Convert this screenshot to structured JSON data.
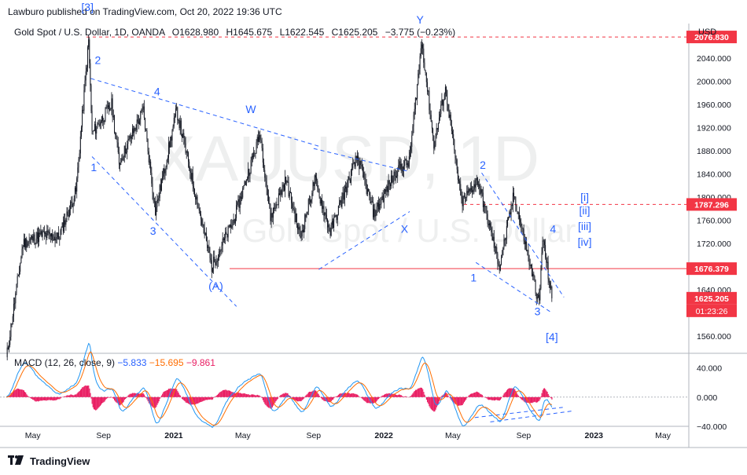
{
  "header": {
    "published_text": "Lawburo published on TradingView.com, Oct 20, 2022 19:36 UTC"
  },
  "legend": {
    "symbol": "Gold Spot / U.S. Dollar, 1D, OANDA",
    "open": "O1628.980",
    "high": "H1645.675",
    "low": "L1622.545",
    "close": "C1625.205",
    "change": "−3.775 (−0.23%)"
  },
  "watermark": {
    "ticker": "XAUUSD, 1D",
    "name": "Gold Spot / U.S. Dollar"
  },
  "price_axis": {
    "currency": "USD",
    "ticks": [
      "2040.000",
      "2000.000",
      "1960.000",
      "1920.000",
      "1880.000",
      "1840.000",
      "1800.000",
      "1760.000",
      "1720.000",
      "1680.000",
      "1640.000",
      "1600.000",
      "1560.000"
    ],
    "tick_values": [
      2040,
      2000,
      1960,
      1920,
      1880,
      1840,
      1800,
      1760,
      1720,
      1680,
      1640,
      1600,
      1560
    ],
    "labels": [
      {
        "text": "2076.830",
        "value": 2076.83,
        "color": "#f23645"
      },
      {
        "text": "1787.296",
        "value": 1787.296,
        "color": "#f23645"
      },
      {
        "text": "1676.379",
        "value": 1676.379,
        "color": "#f23645"
      },
      {
        "text": "1625.205",
        "value": 1625.205,
        "color": "#f23645"
      }
    ],
    "countdown": "01:23:26"
  },
  "macd_axis": {
    "ticks": [
      "40.000",
      "0.000",
      "−40.000"
    ],
    "tick_values": [
      40,
      0,
      -40
    ]
  },
  "time_axis": {
    "labels": [
      "May",
      "Sep",
      "2021",
      "May",
      "Sep",
      "2022",
      "May",
      "Sep",
      "2023",
      "May"
    ]
  },
  "macd_legend": {
    "title": "MACD (12, 26, close, 9)",
    "macd_value": "−5.833",
    "signal_value": "−15.695",
    "hist_value": "−9.861"
  },
  "wave_labels": [
    {
      "text": "[3]"
    },
    {
      "text": "2"
    },
    {
      "text": "1"
    },
    {
      "text": "4"
    },
    {
      "text": "3"
    },
    {
      "text": "W"
    },
    {
      "text": "(A)"
    },
    {
      "text": "Y"
    },
    {
      "text": "X"
    },
    {
      "text": "2"
    },
    {
      "text": "4"
    },
    {
      "text": "1"
    },
    {
      "text": "3"
    },
    {
      "text": "[4]"
    },
    {
      "text": "[i]"
    },
    {
      "text": "[ii]"
    },
    {
      "text": "[iii]"
    },
    {
      "text": "[iv]"
    }
  ],
  "colors": {
    "candle": "#131722",
    "accent": "#2962ff",
    "wave_label": "#2962ff",
    "resistance": "#f23645",
    "macd": "#2196f3",
    "signal": "#ff6d00",
    "histogram": "#e91e63"
  },
  "chart_data": {
    "type": "candlestick",
    "symbol": "XAUUSD",
    "timeframe": "1D",
    "ylim": [
      1530,
      2100
    ],
    "horizontal_levels": [
      2076.83,
      1787.296,
      1676.379
    ],
    "last_price": 1625.205,
    "close_path": [
      {
        "x": "2020-03-16",
        "y": 1520
      },
      {
        "x": "2020-04-14",
        "y": 1720
      },
      {
        "x": "2020-05-18",
        "y": 1735
      },
      {
        "x": "2020-06-15",
        "y": 1730
      },
      {
        "x": "2020-07-15",
        "y": 1810
      },
      {
        "x": "2020-08-06",
        "y": 2070
      },
      {
        "x": "2020-08-12",
        "y": 1910
      },
      {
        "x": "2020-09-15",
        "y": 1960
      },
      {
        "x": "2020-09-28",
        "y": 1860
      },
      {
        "x": "2020-11-09",
        "y": 1950
      },
      {
        "x": "2020-11-30",
        "y": 1775
      },
      {
        "x": "2021-01-06",
        "y": 1950
      },
      {
        "x": "2021-03-08",
        "y": 1680
      },
      {
        "x": "2021-04-15",
        "y": 1760
      },
      {
        "x": "2021-05-31",
        "y": 1910
      },
      {
        "x": "2021-06-18",
        "y": 1765
      },
      {
        "x": "2021-07-15",
        "y": 1830
      },
      {
        "x": "2021-08-09",
        "y": 1730
      },
      {
        "x": "2021-09-03",
        "y": 1830
      },
      {
        "x": "2021-09-30",
        "y": 1740
      },
      {
        "x": "2021-11-16",
        "y": 1870
      },
      {
        "x": "2021-12-15",
        "y": 1770
      },
      {
        "x": "2022-01-25",
        "y": 1850
      },
      {
        "x": "2022-02-14",
        "y": 1860
      },
      {
        "x": "2022-03-08",
        "y": 2070
      },
      {
        "x": "2022-03-29",
        "y": 1890
      },
      {
        "x": "2022-04-18",
        "y": 1990
      },
      {
        "x": "2022-05-16",
        "y": 1790
      },
      {
        "x": "2022-06-13",
        "y": 1830
      },
      {
        "x": "2022-07-21",
        "y": 1680
      },
      {
        "x": "2022-08-15",
        "y": 1805
      },
      {
        "x": "2022-09-28",
        "y": 1615
      },
      {
        "x": "2022-10-04",
        "y": 1730
      },
      {
        "x": "2022-10-20",
        "y": 1625
      }
    ],
    "macd_ylim": [
      -40,
      60
    ]
  }
}
